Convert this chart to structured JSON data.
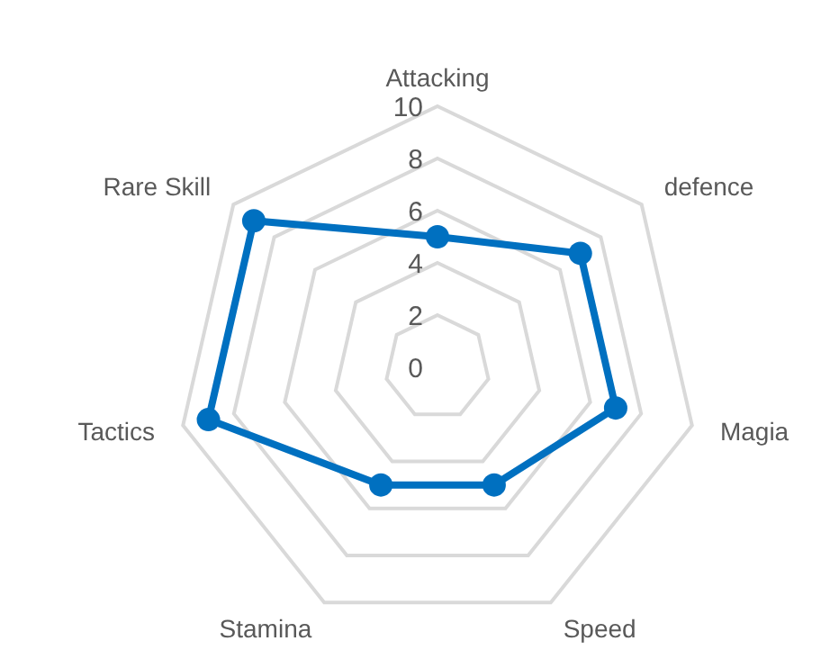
{
  "chart_data": {
    "type": "radar",
    "categories": [
      "Attacking",
      "defence",
      "Magia",
      "Speed",
      "Stamina",
      "Tactics",
      "Rare Skill"
    ],
    "series": [
      {
        "color": "#0070c0",
        "values": [
          5,
          7,
          7,
          5,
          5,
          9,
          9
        ]
      }
    ],
    "ylim": [
      0,
      10
    ],
    "yticks": [
      0,
      2,
      4,
      6,
      8,
      10
    ],
    "grid": true,
    "marker": "circle"
  }
}
